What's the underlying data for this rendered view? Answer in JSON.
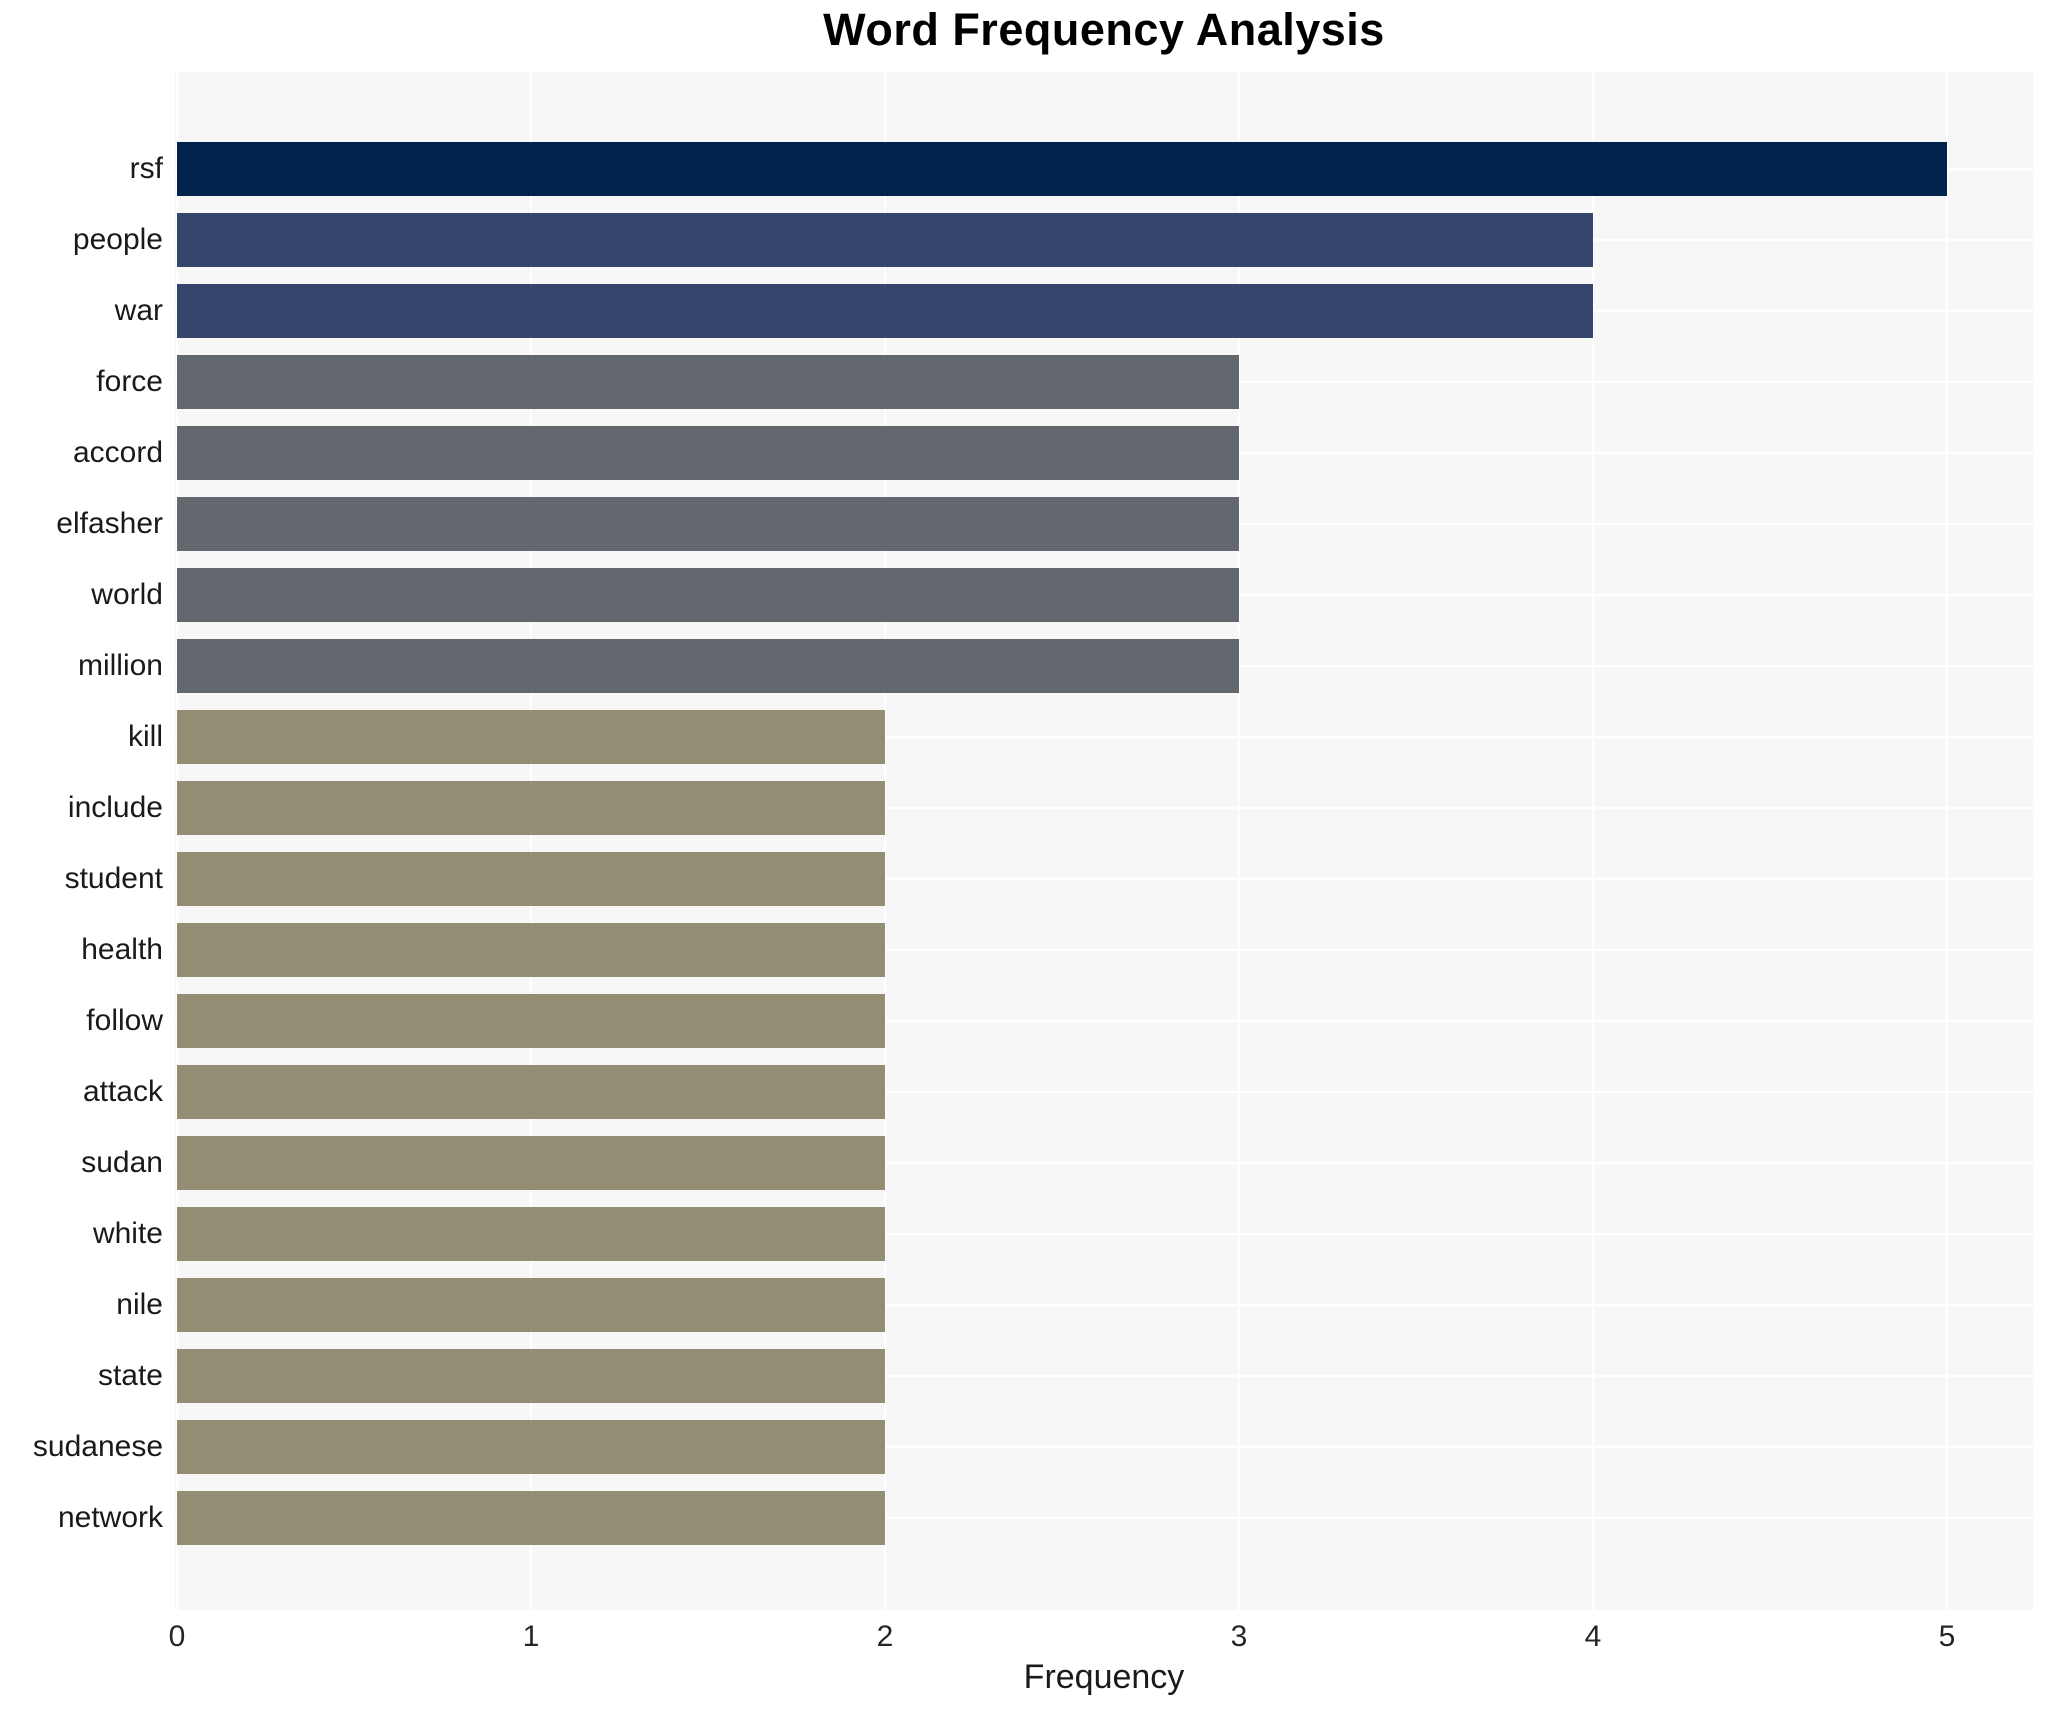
{
  "title": "Word Frequency Analysis",
  "chart_data": {
    "type": "bar",
    "orientation": "horizontal",
    "title": "Word Frequency Analysis",
    "xlabel": "Frequency",
    "ylabel": "",
    "categories": [
      "rsf",
      "people",
      "war",
      "force",
      "accord",
      "elfasher",
      "world",
      "million",
      "kill",
      "include",
      "student",
      "health",
      "follow",
      "attack",
      "sudan",
      "white",
      "nile",
      "state",
      "sudanese",
      "network"
    ],
    "values": [
      5,
      4,
      4,
      3,
      3,
      3,
      3,
      3,
      2,
      2,
      2,
      2,
      2,
      2,
      2,
      2,
      2,
      2,
      2,
      2
    ],
    "xticks": [
      0,
      1,
      2,
      3,
      4,
      5
    ],
    "xlim": [
      0,
      5.25
    ],
    "grid": true,
    "legend": false,
    "plot_background": "#f7f7f7",
    "grid_color": "#ffffff",
    "value_colors": {
      "5": "#02234c",
      "4": "#36456b",
      "3": "#63686f",
      "2": "#938d74"
    },
    "bar_colors": [
      "#02234c",
      "#36456b",
      "#36456b",
      "#63686f",
      "#63686f",
      "#63686f",
      "#63686f",
      "#63686f",
      "#938d74",
      "#938d74",
      "#938d74",
      "#938d74",
      "#938d74",
      "#938d74",
      "#938d74",
      "#938d74",
      "#938d74",
      "#938d74",
      "#938d74",
      "#938d74"
    ]
  }
}
